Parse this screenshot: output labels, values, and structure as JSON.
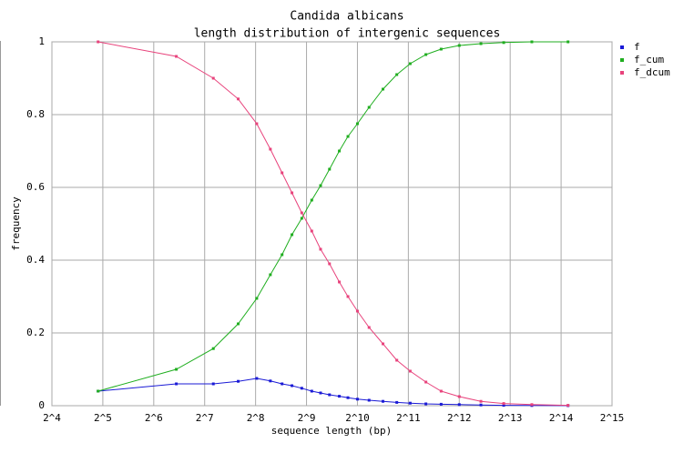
{
  "chart_data": {
    "type": "line",
    "title": "Candida albicans",
    "subtitle": "length distribution of intergenic sequences",
    "x_label": "sequence length (bp)",
    "y_label": "frequency",
    "xscale": "log",
    "grid": true,
    "legend": "right",
    "xlim": [
      16,
      32768
    ],
    "xticks": [
      {
        "value": 16,
        "label": "2^4"
      },
      {
        "value": 32,
        "label": "2^5"
      },
      {
        "value": 64,
        "label": "2^6"
      },
      {
        "value": 128,
        "label": "2^7"
      },
      {
        "value": 256,
        "label": "2^8"
      },
      {
        "value": 512,
        "label": "2^9"
      },
      {
        "value": 1024,
        "label": "2^10"
      },
      {
        "value": 2048,
        "label": "2^11"
      },
      {
        "value": 4096,
        "label": "2^12"
      },
      {
        "value": 8192,
        "label": "2^13"
      },
      {
        "value": 16384,
        "label": "2^14"
      },
      {
        "value": 32768,
        "label": "2^15"
      }
    ],
    "ylim": [
      0,
      1
    ],
    "yticks": [
      0,
      0.2,
      0.4,
      0.6,
      0.8,
      1
    ],
    "x": [
      30,
      87,
      144,
      202,
      260,
      313,
      367,
      420,
      480,
      550,
      620,
      700,
      800,
      900,
      1024,
      1200,
      1450,
      1750,
      2100,
      2600,
      3200,
      4096,
      5500,
      7500,
      11000,
      18000
    ],
    "series": [
      {
        "name": "f",
        "color": "#1a1ad6",
        "values": [
          0.04,
          0.06,
          0.06,
          0.067,
          0.075,
          0.068,
          0.06,
          0.055,
          0.048,
          0.04,
          0.035,
          0.03,
          0.026,
          0.022,
          0.018,
          0.015,
          0.012,
          0.009,
          0.007,
          0.005,
          0.004,
          0.003,
          0.002,
          0.001,
          0.0005,
          0.0002
        ]
      },
      {
        "name": "f_cum",
        "color": "#1fae1f",
        "values": [
          0.04,
          0.1,
          0.157,
          0.225,
          0.295,
          0.36,
          0.415,
          0.47,
          0.515,
          0.565,
          0.605,
          0.65,
          0.7,
          0.74,
          0.775,
          0.82,
          0.87,
          0.91,
          0.94,
          0.965,
          0.98,
          0.99,
          0.995,
          0.998,
          1,
          1
        ]
      },
      {
        "name": "f_dcum",
        "color": "#e8437c",
        "values": [
          1,
          0.96,
          0.9,
          0.843,
          0.775,
          0.705,
          0.64,
          0.585,
          0.53,
          0.48,
          0.43,
          0.39,
          0.34,
          0.3,
          0.26,
          0.215,
          0.17,
          0.125,
          0.095,
          0.065,
          0.04,
          0.025,
          0.012,
          0.006,
          0.003,
          0.001
        ]
      }
    ]
  }
}
